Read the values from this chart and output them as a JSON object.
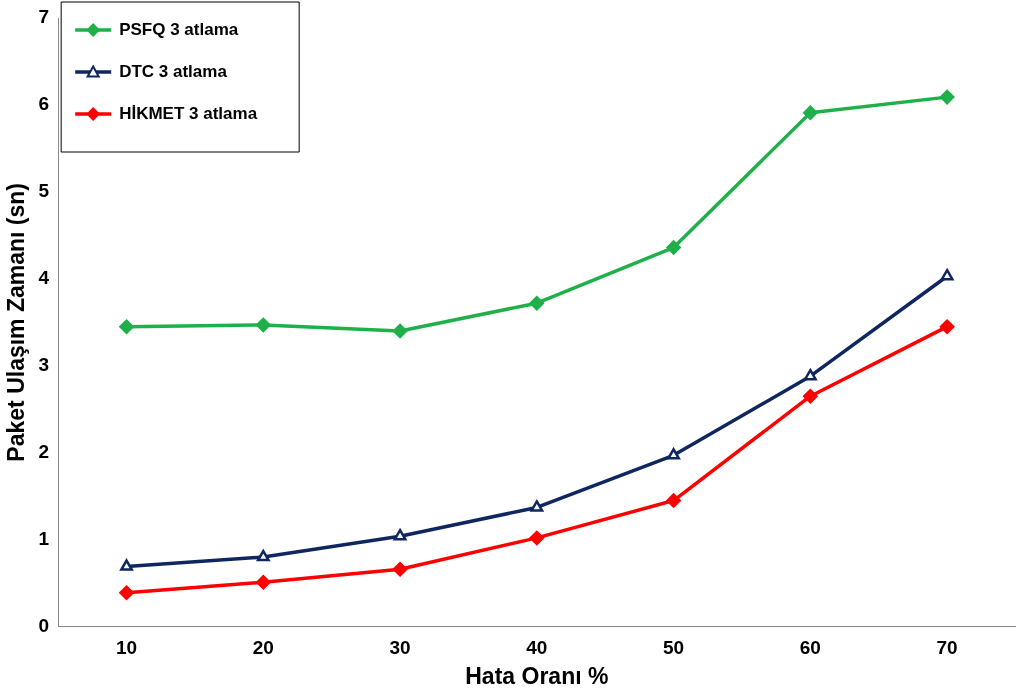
{
  "chart_data": {
    "type": "line",
    "xlabel": "Hata Oranı %",
    "ylabel": "Paket Ulaşım Zamanı (sn)",
    "categories": [
      "10",
      "20",
      "30",
      "40",
      "50",
      "60",
      "70"
    ],
    "ylim": [
      0,
      7
    ],
    "yticks": [
      0,
      1,
      2,
      3,
      4,
      5,
      6,
      7
    ],
    "grid": false,
    "legend": "top left",
    "line_style": "solid",
    "series": [
      {
        "name": "PSFQ 3 atlama",
        "color": "#1fb04a",
        "marker": "diamond",
        "values": [
          3.45,
          3.47,
          3.4,
          3.72,
          4.36,
          5.91,
          6.09
        ]
      },
      {
        "name": "DTC 3 atlama",
        "color": "#0f2660",
        "marker": "triangle",
        "values": [
          0.69,
          0.8,
          1.04,
          1.37,
          1.97,
          2.88,
          4.03
        ]
      },
      {
        "name": "HİKMET 3 atlama",
        "color": "#ff0000",
        "marker": "diamond",
        "values": [
          0.39,
          0.51,
          0.66,
          1.02,
          1.45,
          2.65,
          3.45
        ]
      }
    ]
  }
}
